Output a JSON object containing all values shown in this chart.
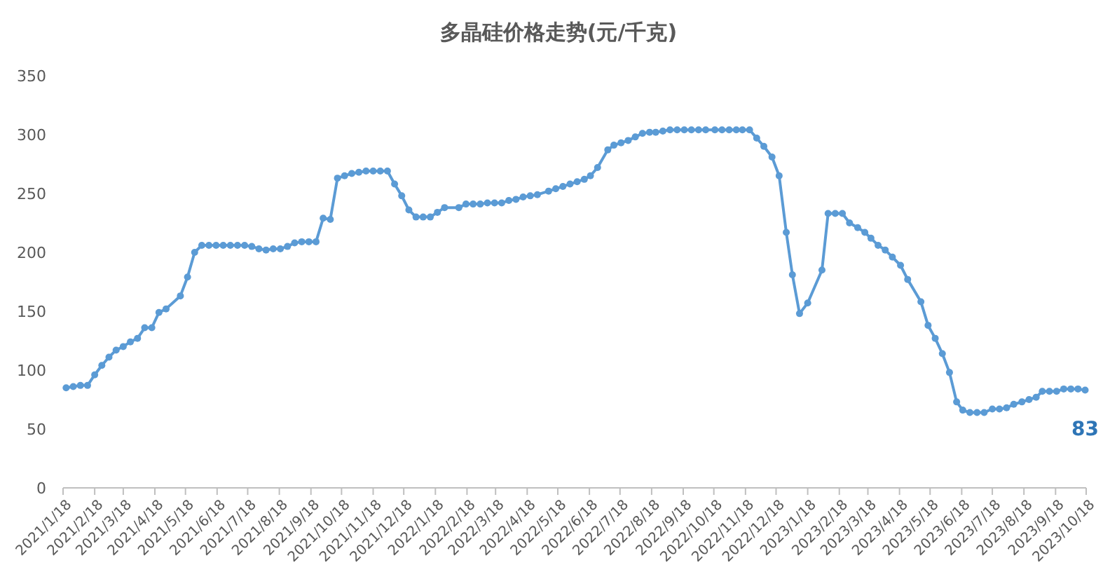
{
  "chart_data": {
    "type": "line",
    "title": "多晶硅价格走势(元/千克)",
    "x": [
      "2021-01-21",
      "2021-01-28",
      "2021-02-04",
      "2021-02-11",
      "2021-02-18",
      "2021-02-25",
      "2021-03-04",
      "2021-03-11",
      "2021-03-18",
      "2021-03-25",
      "2021-04-01",
      "2021-04-08",
      "2021-04-15",
      "2021-04-22",
      "2021-04-29",
      "2021-05-13",
      "2021-05-20",
      "2021-05-27",
      "2021-06-03",
      "2021-06-10",
      "2021-06-17",
      "2021-06-24",
      "2021-07-01",
      "2021-07-08",
      "2021-07-15",
      "2021-07-22",
      "2021-07-29",
      "2021-08-05",
      "2021-08-12",
      "2021-08-19",
      "2021-08-26",
      "2021-09-02",
      "2021-09-09",
      "2021-09-16",
      "2021-09-23",
      "2021-09-30",
      "2021-10-07",
      "2021-10-14",
      "2021-10-21",
      "2021-10-28",
      "2021-11-04",
      "2021-11-11",
      "2021-11-18",
      "2021-11-25",
      "2021-12-02",
      "2021-12-09",
      "2021-12-16",
      "2021-12-23",
      "2021-12-30",
      "2022-01-06",
      "2022-01-13",
      "2022-01-20",
      "2022-01-27",
      "2022-02-10",
      "2022-02-17",
      "2022-02-24",
      "2022-03-03",
      "2022-03-10",
      "2022-03-17",
      "2022-03-24",
      "2022-03-31",
      "2022-04-07",
      "2022-04-14",
      "2022-04-21",
      "2022-04-28",
      "2022-05-09",
      "2022-05-16",
      "2022-05-23",
      "2022-05-30",
      "2022-06-06",
      "2022-06-13",
      "2022-06-19",
      "2022-06-26",
      "2022-07-06",
      "2022-07-12",
      "2022-07-19",
      "2022-07-26",
      "2022-08-02",
      "2022-08-09",
      "2022-08-16",
      "2022-08-22",
      "2022-08-29",
      "2022-09-05",
      "2022-09-12",
      "2022-09-19",
      "2022-09-26",
      "2022-10-03",
      "2022-10-10",
      "2022-10-19",
      "2022-10-26",
      "2022-11-02",
      "2022-11-09",
      "2022-11-15",
      "2022-11-22",
      "2022-11-29",
      "2022-12-06",
      "2022-12-14",
      "2022-12-21",
      "2022-12-28",
      "2023-01-03",
      "2023-01-10",
      "2023-01-18",
      "2023-02-01",
      "2023-02-07",
      "2023-02-14",
      "2023-02-21",
      "2023-02-28",
      "2023-03-08",
      "2023-03-15",
      "2023-03-21",
      "2023-03-28",
      "2023-04-04",
      "2023-04-11",
      "2023-04-19",
      "2023-04-26",
      "2023-05-09",
      "2023-05-16",
      "2023-05-23",
      "2023-05-30",
      "2023-06-06",
      "2023-06-13",
      "2023-06-19",
      "2023-06-26",
      "2023-07-03",
      "2023-07-10",
      "2023-07-18",
      "2023-07-25",
      "2023-08-01",
      "2023-08-08",
      "2023-08-16",
      "2023-08-23",
      "2023-08-30",
      "2023-09-05",
      "2023-09-12",
      "2023-09-19",
      "2023-09-26",
      "2023-10-03",
      "2023-10-10",
      "2023-10-17"
    ],
    "series": [
      {
        "color": "#5b9bd5",
        "values": [
          85,
          86,
          87,
          87,
          96,
          104,
          111,
          117,
          120,
          124,
          127,
          136,
          136,
          149,
          152,
          163,
          179,
          200,
          206,
          206,
          206,
          206,
          206,
          206,
          206,
          205,
          203,
          202,
          203,
          203,
          205,
          208,
          209,
          209,
          209,
          229,
          228,
          263,
          265,
          267,
          268,
          269,
          269,
          269,
          269,
          258,
          248,
          236,
          230,
          230,
          230,
          234,
          238,
          238,
          241,
          241,
          241,
          242,
          242,
          242,
          244,
          245,
          247,
          248,
          249,
          252,
          254,
          256,
          258,
          260,
          262,
          265,
          272,
          287,
          291,
          293,
          295,
          298,
          301,
          302,
          302,
          303,
          304,
          304,
          304,
          304,
          304,
          304,
          304,
          304,
          304,
          304,
          304,
          304,
          297,
          290,
          281,
          265,
          217,
          181,
          148,
          157,
          185,
          233,
          233,
          233,
          225,
          221,
          217,
          212,
          206,
          202,
          196,
          189,
          177,
          158,
          138,
          127,
          114,
          98,
          73,
          66,
          64,
          64,
          64,
          67,
          67,
          68,
          71,
          73,
          75,
          77,
          82,
          82,
          82,
          84,
          84,
          84,
          83
        ]
      }
    ],
    "xlim": [
      "2021-01-18",
      "2023-10-18"
    ],
    "xticks": [
      {
        "value": "2021-01-18",
        "label": "2021/1/18"
      },
      {
        "value": "2021-02-18",
        "label": "2021/2/18"
      },
      {
        "value": "2021-03-18",
        "label": "2021/3/18"
      },
      {
        "value": "2021-04-18",
        "label": "2021/4/18"
      },
      {
        "value": "2021-05-18",
        "label": "2021/5/18"
      },
      {
        "value": "2021-06-18",
        "label": "2021/6/18"
      },
      {
        "value": "2021-07-18",
        "label": "2021/7/18"
      },
      {
        "value": "2021-08-18",
        "label": "2021/8/18"
      },
      {
        "value": "2021-09-18",
        "label": "2021/9/18"
      },
      {
        "value": "2021-10-18",
        "label": "2021/10/18"
      },
      {
        "value": "2021-11-18",
        "label": "2021/11/18"
      },
      {
        "value": "2021-12-18",
        "label": "2021/12/18"
      },
      {
        "value": "2022-01-18",
        "label": "2022/1/18"
      },
      {
        "value": "2022-02-18",
        "label": "2022/2/18"
      },
      {
        "value": "2022-03-18",
        "label": "2022/3/18"
      },
      {
        "value": "2022-04-18",
        "label": "2022/4/18"
      },
      {
        "value": "2022-05-18",
        "label": "2022/5/18"
      },
      {
        "value": "2022-06-18",
        "label": "2022/6/18"
      },
      {
        "value": "2022-07-18",
        "label": "2022/7/18"
      },
      {
        "value": "2022-08-18",
        "label": "2022/8/18"
      },
      {
        "value": "2022-09-18",
        "label": "2022/9/18"
      },
      {
        "value": "2022-10-18",
        "label": "2022/10/18"
      },
      {
        "value": "2022-11-18",
        "label": "2022/11/18"
      },
      {
        "value": "2022-12-18",
        "label": "2022/12/18"
      },
      {
        "value": "2023-01-18",
        "label": "2023/1/18"
      },
      {
        "value": "2023-02-18",
        "label": "2023/2/18"
      },
      {
        "value": "2023-03-18",
        "label": "2023/3/18"
      },
      {
        "value": "2023-04-18",
        "label": "2023/4/18"
      },
      {
        "value": "2023-05-18",
        "label": "2023/5/18"
      },
      {
        "value": "2023-06-18",
        "label": "2023/6/18"
      },
      {
        "value": "2023-07-18",
        "label": "2023/7/18"
      },
      {
        "value": "2023-08-18",
        "label": "2023/8/18"
      },
      {
        "value": "2023-09-18",
        "label": "2023/9/18"
      },
      {
        "value": "2023-10-18",
        "label": "2023/10/18"
      }
    ],
    "ylim": [
      0,
      350
    ],
    "yticks": [
      0,
      50,
      100,
      150,
      200,
      250,
      300,
      350
    ],
    "marker": "circle",
    "line_style": "solid",
    "annotations": [
      {
        "text": "83",
        "x": "2023-10-17",
        "y": 83
      }
    ]
  }
}
